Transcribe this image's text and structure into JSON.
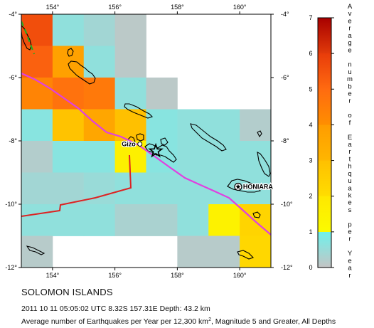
{
  "map": {
    "longitude_ticks": [
      "154°",
      "156°",
      "158°",
      "160°"
    ],
    "latitude_ticks": [
      "-4°",
      "-6°",
      "-8°",
      "-10°",
      "-12°"
    ],
    "extent": {
      "lon_min": 153,
      "lon_max": 161,
      "lat_min": -12,
      "lat_max": -4
    },
    "cell_size_deg": 1,
    "places": [
      {
        "name": "Gizo",
        "lon": 156.8,
        "lat": -8.1,
        "symbol": "circle"
      },
      {
        "name": "HONIARA",
        "lon": 159.95,
        "lat": -9.45,
        "symbol": "star-circle"
      }
    ],
    "epicenter": {
      "lon": 157.31,
      "lat": -8.32,
      "symbol": "star"
    },
    "colors": {
      "plate_boundary": "#e040e0",
      "subduction_trench": "#22aa22",
      "zone_boundary": "#dd2222",
      "coastline": "#000000"
    }
  },
  "legend": {
    "title": "Average number of Earthquakes per Year",
    "ticks": [
      "0",
      "1",
      "2",
      "3",
      "4",
      "5",
      "6",
      "7"
    ],
    "scale": [
      {
        "from": 0,
        "to": 1,
        "top": "#6ef2ec",
        "bottom": "#c4c4c4"
      },
      {
        "from": 1,
        "to": 2,
        "top": "#ffe800",
        "bottom": "#fbfb00"
      },
      {
        "from": 2,
        "to": 3,
        "top": "#ffc000",
        "bottom": "#ffdd00"
      },
      {
        "from": 3,
        "to": 4,
        "top": "#ff9c00",
        "bottom": "#ffb600"
      },
      {
        "from": 4,
        "to": 5,
        "top": "#ff6b10",
        "bottom": "#ff8e00"
      },
      {
        "from": 5,
        "to": 6,
        "top": "#e83c0a",
        "bottom": "#ff6a10"
      },
      {
        "from": 6,
        "to": 7,
        "top": "#a80000",
        "bottom": "#e03a0a"
      }
    ]
  },
  "chart_data": {
    "type": "heatmap",
    "x_label": "",
    "y_label": "",
    "value_range": [
      0,
      7
    ],
    "note_units": "Average number of Earthquakes per Year per 12,300 km², Magnitude 5 and Greater",
    "cells": [
      {
        "lon": [
          153,
          154
        ],
        "lat": [
          -5,
          -4
        ],
        "value": 5.6
      },
      {
        "lon": [
          154,
          155
        ],
        "lat": [
          -5,
          -4
        ],
        "value": 0.6
      },
      {
        "lon": [
          155,
          156
        ],
        "lat": [
          -5,
          -4
        ],
        "value": 0.4
      },
      {
        "lon": [
          156,
          157
        ],
        "lat": [
          -5,
          -4
        ],
        "value": 0.1
      },
      {
        "lon": [
          153,
          154
        ],
        "lat": [
          -6,
          -5
        ],
        "value": 5.2
      },
      {
        "lon": [
          154,
          155
        ],
        "lat": [
          -6,
          -5
        ],
        "value": 3.8
      },
      {
        "lon": [
          155,
          156
        ],
        "lat": [
          -6,
          -5
        ],
        "value": 0.6
      },
      {
        "lon": [
          156,
          157
        ],
        "lat": [
          -6,
          -5
        ],
        "value": 0.1
      },
      {
        "lon": [
          153,
          154
        ],
        "lat": [
          -7,
          -6
        ],
        "value": 4.3
      },
      {
        "lon": [
          154,
          155
        ],
        "lat": [
          -7,
          -6
        ],
        "value": 4.8
      },
      {
        "lon": [
          155,
          156
        ],
        "lat": [
          -7,
          -6
        ],
        "value": 4.6
      },
      {
        "lon": [
          156,
          157
        ],
        "lat": [
          -7,
          -6
        ],
        "value": 0.6
      },
      {
        "lon": [
          157,
          158
        ],
        "lat": [
          -7,
          -6
        ],
        "value": 0.1
      },
      {
        "lon": [
          153,
          154
        ],
        "lat": [
          -8,
          -7
        ],
        "value": 0.7
      },
      {
        "lon": [
          154,
          155
        ],
        "lat": [
          -8,
          -7
        ],
        "value": 2.9
      },
      {
        "lon": [
          155,
          156
        ],
        "lat": [
          -8,
          -7
        ],
        "value": 3.6
      },
      {
        "lon": [
          156,
          157
        ],
        "lat": [
          -8,
          -7
        ],
        "value": 3.0
      },
      {
        "lon": [
          157,
          158
        ],
        "lat": [
          -8,
          -7
        ],
        "value": 0.7
      },
      {
        "lon": [
          158,
          159
        ],
        "lat": [
          -8,
          -7
        ],
        "value": 0.6
      },
      {
        "lon": [
          159,
          160
        ],
        "lat": [
          -8,
          -7
        ],
        "value": 0.6
      },
      {
        "lon": [
          160,
          161
        ],
        "lat": [
          -8,
          -7
        ],
        "value": 0.2
      },
      {
        "lon": [
          153,
          154
        ],
        "lat": [
          -9,
          -8
        ],
        "value": 0.2
      },
      {
        "lon": [
          154,
          155
        ],
        "lat": [
          -9,
          -8
        ],
        "value": 0.7
      },
      {
        "lon": [
          155,
          156
        ],
        "lat": [
          -9,
          -8
        ],
        "value": 0.7
      },
      {
        "lon": [
          156,
          157
        ],
        "lat": [
          -9,
          -8
        ],
        "value": 1.6
      },
      {
        "lon": [
          157,
          158
        ],
        "lat": [
          -9,
          -8
        ],
        "value": 0.7
      },
      {
        "lon": [
          158,
          159
        ],
        "lat": [
          -9,
          -8
        ],
        "value": 0.6
      },
      {
        "lon": [
          159,
          160
        ],
        "lat": [
          -9,
          -8
        ],
        "value": 0.6
      },
      {
        "lon": [
          160,
          161
        ],
        "lat": [
          -9,
          -8
        ],
        "value": 0.6
      },
      {
        "lon": [
          153,
          154
        ],
        "lat": [
          -10,
          -9
        ],
        "value": 0.4
      },
      {
        "lon": [
          154,
          155
        ],
        "lat": [
          -10,
          -9
        ],
        "value": 0.4
      },
      {
        "lon": [
          155,
          156
        ],
        "lat": [
          -10,
          -9
        ],
        "value": 0.5
      },
      {
        "lon": [
          156,
          157
        ],
        "lat": [
          -10,
          -9
        ],
        "value": 0.6
      },
      {
        "lon": [
          157,
          158
        ],
        "lat": [
          -10,
          -9
        ],
        "value": 0.6
      },
      {
        "lon": [
          158,
          159
        ],
        "lat": [
          -10,
          -9
        ],
        "value": 0.6
      },
      {
        "lon": [
          159,
          160
        ],
        "lat": [
          -10,
          -9
        ],
        "value": 0.6
      },
      {
        "lon": [
          160,
          161
        ],
        "lat": [
          -10,
          -9
        ],
        "value": 0.6
      },
      {
        "lon": [
          153,
          154
        ],
        "lat": [
          -11,
          -10
        ],
        "value": 0.6
      },
      {
        "lon": [
          154,
          155
        ],
        "lat": [
          -11,
          -10
        ],
        "value": 0.6
      },
      {
        "lon": [
          155,
          156
        ],
        "lat": [
          -11,
          -10
        ],
        "value": 0.6
      },
      {
        "lon": [
          156,
          157
        ],
        "lat": [
          -11,
          -10
        ],
        "value": 0.3
      },
      {
        "lon": [
          157,
          158
        ],
        "lat": [
          -11,
          -10
        ],
        "value": 0.3
      },
      {
        "lon": [
          158,
          159
        ],
        "lat": [
          -11,
          -10
        ],
        "value": 0.6
      },
      {
        "lon": [
          159,
          160
        ],
        "lat": [
          -11,
          -10
        ],
        "value": 1.5
      },
      {
        "lon": [
          160,
          161
        ],
        "lat": [
          -11,
          -10
        ],
        "value": 2.3
      },
      {
        "lon": [
          153,
          154
        ],
        "lat": [
          -12,
          -11
        ],
        "value": 0.15
      },
      {
        "lon": [
          158,
          159
        ],
        "lat": [
          -12,
          -11
        ],
        "value": 0.15
      },
      {
        "lon": [
          159,
          160
        ],
        "lat": [
          -12,
          -11
        ],
        "value": 0.15
      },
      {
        "lon": [
          160,
          161
        ],
        "lat": [
          -12,
          -11
        ],
        "value": 2.2
      }
    ]
  },
  "caption": {
    "region": "SOLOMON ISLANDS",
    "event": "2011 10 11 05:05:02 UTC 8.32S 157.31E Depth: 43.2 km",
    "description_prefix": "Average number of Earthquakes per Year per 12,300 km",
    "description_sup": "2",
    "description_suffix": ", Magnitude 5 and Greater, All Depths"
  }
}
